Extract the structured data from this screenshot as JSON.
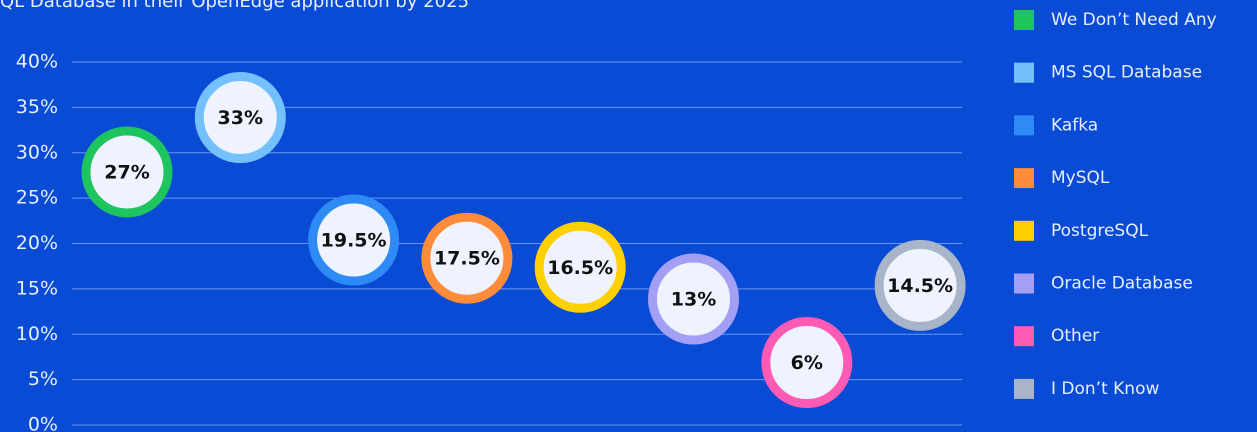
{
  "chart_data": {
    "type": "scatter",
    "title": "QL Database in their OpenEdge application by 2025",
    "categories": [
      "We Don’t Need Any",
      "MS SQL Database",
      "Kafka",
      "MySQL",
      "PostgreSQL",
      "Oracle Database",
      "Other",
      "I Don’t Know"
    ],
    "values": [
      27,
      33,
      19.5,
      17.5,
      16.5,
      13,
      6,
      14.5
    ],
    "value_labels": [
      "27%",
      "33%",
      "19.5%",
      "17.5%",
      "16.5%",
      "13%",
      "6%",
      "14.5%"
    ],
    "colors": [
      "#1ec45e",
      "#74c0fc",
      "#2e8bf5",
      "#ff8c3a",
      "#ffd000",
      "#a29ff5",
      "#ff5ab4",
      "#a8b4c8"
    ],
    "ylim": [
      0,
      40
    ],
    "yticks": [
      {
        "value": 0,
        "label": "0%"
      },
      {
        "value": 5,
        "label": "5%"
      },
      {
        "value": 10,
        "label": "10%"
      },
      {
        "value": 15,
        "label": "15%"
      },
      {
        "value": 20,
        "label": "20%"
      },
      {
        "value": 25,
        "label": "25%"
      },
      {
        "value": 30,
        "label": "30%"
      },
      {
        "value": 35,
        "label": "35%"
      },
      {
        "value": 40,
        "label": "40%"
      }
    ],
    "grid": true,
    "legend": "right"
  }
}
